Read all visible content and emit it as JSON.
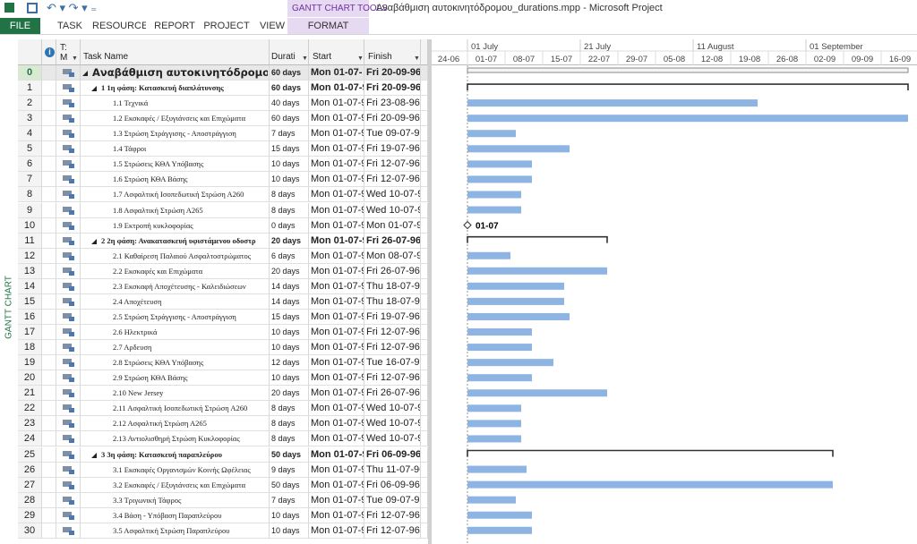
{
  "window": {
    "tools_tab": "GANTT CHART TOOLS",
    "title": "Αναβάθμιση αυτοκινητόδρομου_durations.mpp - Microsoft Project"
  },
  "ribbon": {
    "tabs": [
      "FILE",
      "TASK",
      "RESOURCE",
      "REPORT",
      "PROJECT",
      "VIEW",
      "FORMAT"
    ]
  },
  "sidebar": {
    "view_label": "GANTT CHART"
  },
  "table": {
    "headers": {
      "mode": [
        "T:",
        "M"
      ],
      "name": "Task Name",
      "duration": "Durati",
      "start": "Start",
      "finish": "Finish"
    },
    "rows": [
      {
        "id": 0,
        "name": "Αναβάθμιση αυτοκινητόδρομου",
        "duration": "60 days",
        "start": "Mon 01-07-",
        "finish": "Fri 20-09-96",
        "level": 0,
        "summary": true
      },
      {
        "id": 1,
        "name": "1 1η φάση: Κατασκευή διαπλάτυνσης",
        "duration": "60 days",
        "start": "Mon 01-07-9",
        "finish": "Fri 20-09-96",
        "level": 1,
        "summary": true
      },
      {
        "id": 2,
        "name": "1.1 Τεχνικά",
        "duration": "40 days",
        "start": "Mon 01-07-9",
        "finish": "Fri 23-08-96",
        "level": 2,
        "summary": false
      },
      {
        "id": 3,
        "name": "1.2 Εκσκαφές / Εξυγιάνσεις και Επιχώματα",
        "duration": "60 days",
        "start": "Mon 01-07-9",
        "finish": "Fri 20-09-96",
        "level": 2,
        "summary": false
      },
      {
        "id": 4,
        "name": "1.3 Στρώση Στράγγισης - Αποστράγγιση",
        "duration": "7 days",
        "start": "Mon 01-07-9",
        "finish": "Tue 09-07-96",
        "level": 2,
        "summary": false
      },
      {
        "id": 5,
        "name": "1.4 Τάφροι",
        "duration": "15 days",
        "start": "Mon 01-07-9",
        "finish": "Fri 19-07-96",
        "level": 2,
        "summary": false
      },
      {
        "id": 6,
        "name": "1.5 Στρώσεις ΚΘΑ Υπόβασης",
        "duration": "10 days",
        "start": "Mon 01-07-9",
        "finish": "Fri 12-07-96",
        "level": 2,
        "summary": false
      },
      {
        "id": 7,
        "name": "1.6 Στρώση ΚΘΑ Βάσης",
        "duration": "10 days",
        "start": "Mon 01-07-9",
        "finish": "Fri 12-07-96",
        "level": 2,
        "summary": false
      },
      {
        "id": 8,
        "name": "1.7 Ασφαλτική Ισοπεδωτική Στρώση Α260",
        "duration": "8 days",
        "start": "Mon 01-07-9",
        "finish": "Wed 10-07-9",
        "level": 2,
        "summary": false
      },
      {
        "id": 9,
        "name": "1.8 Ασφαλτική Στρώση Α265",
        "duration": "8 days",
        "start": "Mon 01-07-9",
        "finish": "Wed 10-07-9",
        "level": 2,
        "summary": false
      },
      {
        "id": 10,
        "name": "1.9 Εκτροπή κυκλοφορίας",
        "duration": "0 days",
        "start": "Mon 01-07-9",
        "finish": "Mon 01-07-9",
        "level": 2,
        "summary": false,
        "milestone_label": "01-07"
      },
      {
        "id": 11,
        "name": "2 2η φάση: Ανακατασκευή υφιστάμενου οδοστρ",
        "duration": "20 days",
        "start": "Mon 01-07-9",
        "finish": "Fri 26-07-96",
        "level": 1,
        "summary": true
      },
      {
        "id": 12,
        "name": "2.1 Καθαίρεση Παλαιού Ασφαλτοστρώματος",
        "duration": "6 days",
        "start": "Mon 01-07-9",
        "finish": "Mon 08-07-9",
        "level": 2,
        "summary": false
      },
      {
        "id": 13,
        "name": "2.2 Εκσκαφές και Επιχώματα",
        "duration": "20 days",
        "start": "Mon 01-07-9",
        "finish": "Fri 26-07-96",
        "level": 2,
        "summary": false
      },
      {
        "id": 14,
        "name": "2.3 Εκσκαφή Αποχέτευσης - Καλειδιώσεων",
        "duration": "14 days",
        "start": "Mon 01-07-9",
        "finish": "Thu 18-07-96",
        "level": 2,
        "summary": false
      },
      {
        "id": 15,
        "name": "2.4 Αποχέτευση",
        "duration": "14 days",
        "start": "Mon 01-07-9",
        "finish": "Thu 18-07-96",
        "level": 2,
        "summary": false
      },
      {
        "id": 16,
        "name": "2.5 Στρώση Στράγγισης - Αποστράγγιση",
        "duration": "15 days",
        "start": "Mon 01-07-9",
        "finish": "Fri 19-07-96",
        "level": 2,
        "summary": false
      },
      {
        "id": 17,
        "name": "2.6 Ηλεκτρικά",
        "duration": "10 days",
        "start": "Mon 01-07-9",
        "finish": "Fri 12-07-96",
        "level": 2,
        "summary": false
      },
      {
        "id": 18,
        "name": "2.7 Αρδευση",
        "duration": "10 days",
        "start": "Mon 01-07-9",
        "finish": "Fri 12-07-96",
        "level": 2,
        "summary": false
      },
      {
        "id": 19,
        "name": "2.8 Στρώσεις ΚΘΑ Υπόβασης",
        "duration": "12 days",
        "start": "Mon 01-07-9",
        "finish": "Tue 16-07-96",
        "level": 2,
        "summary": false
      },
      {
        "id": 20,
        "name": "2.9 Στρώση ΚΘΑ Βάσης",
        "duration": "10 days",
        "start": "Mon 01-07-9",
        "finish": "Fri 12-07-96",
        "level": 2,
        "summary": false
      },
      {
        "id": 21,
        "name": "2.10 New Jersey",
        "duration": "20 days",
        "start": "Mon 01-07-9",
        "finish": "Fri 26-07-96",
        "level": 2,
        "summary": false
      },
      {
        "id": 22,
        "name": "2.11 Ασφαλτική Ισοπεδωτική Στρώση Α260",
        "duration": "8 days",
        "start": "Mon 01-07-9",
        "finish": "Wed 10-07-9",
        "level": 2,
        "summary": false
      },
      {
        "id": 23,
        "name": "2.12 Ασφαλτική Στρώση Α265",
        "duration": "8 days",
        "start": "Mon 01-07-9",
        "finish": "Wed 10-07-9",
        "level": 2,
        "summary": false
      },
      {
        "id": 24,
        "name": "2.13 Αντιολισθηρή Στρώση Κυκλοφορίας",
        "duration": "8 days",
        "start": "Mon 01-07-9",
        "finish": "Wed 10-07-9",
        "level": 2,
        "summary": false
      },
      {
        "id": 25,
        "name": "3 3η φάση: Κατασκευή παραπλεύρου",
        "duration": "50 days",
        "start": "Mon 01-07-9",
        "finish": "Fri 06-09-96",
        "level": 1,
        "summary": true
      },
      {
        "id": 26,
        "name": "3.1 Εκσκαφές Οργανισμών Κοινής Ωφέλειας",
        "duration": "9 days",
        "start": "Mon 01-07-9",
        "finish": "Thu 11-07-96",
        "level": 2,
        "summary": false
      },
      {
        "id": 27,
        "name": "3.2 Εκσκαφές / Εξυγιάνσεις και Επιχώματα",
        "duration": "50 days",
        "start": "Mon 01-07-9",
        "finish": "Fri 06-09-96",
        "level": 2,
        "summary": false
      },
      {
        "id": 28,
        "name": "3.3 Τριγωνική Τάφρος",
        "duration": "7 days",
        "start": "Mon 01-07-9",
        "finish": "Tue 09-07-96",
        "level": 2,
        "summary": false
      },
      {
        "id": 29,
        "name": "3.4 Βάση - Υπόβαση Παραπλεύρου",
        "duration": "10 days",
        "start": "Mon 01-07-9",
        "finish": "Fri 12-07-96",
        "level": 2,
        "summary": false
      },
      {
        "id": 30,
        "name": "3.5 Ασφαλτική Στρώση Παραπλεύρου",
        "duration": "10 days",
        "start": "Mon 01-07-9",
        "finish": "Fri 12-07-96",
        "level": 2,
        "summary": false
      }
    ]
  },
  "timescale": {
    "top": [
      "01 July",
      "21 July",
      "11 August",
      "01 September"
    ],
    "bottom": [
      "24-06",
      "01-07",
      "08-07",
      "15-07",
      "22-07",
      "29-07",
      "05-08",
      "12-08",
      "19-08",
      "26-08",
      "02-09",
      "09-09",
      "16-09"
    ]
  }
}
